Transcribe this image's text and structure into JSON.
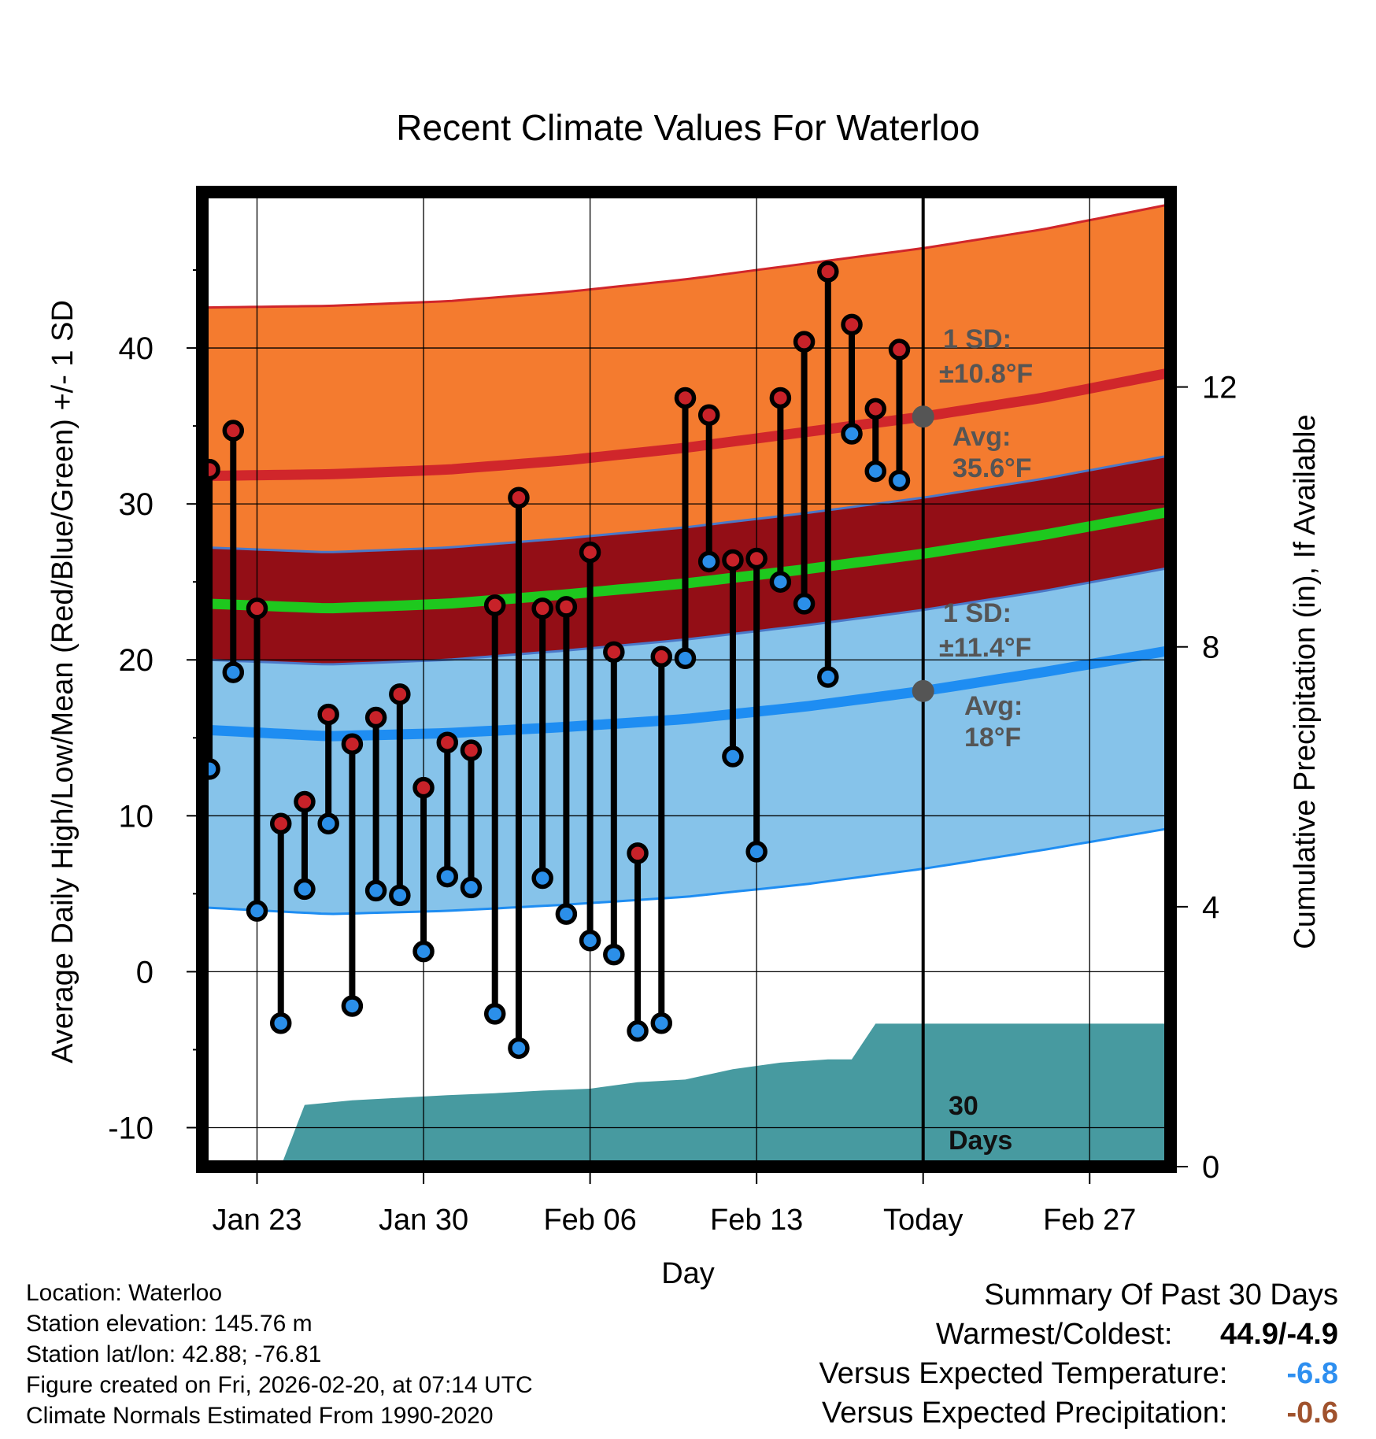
{
  "chart_data": {
    "type": "line",
    "title": "Recent Climate Values For Waterloo",
    "xlabel": "Day",
    "ylabel": "Average Daily High/Low/Mean (Red/Blue/Green) +/- 1 SD",
    "y2label": "Cumulative Precipitation (in), If Available",
    "ylim": [
      -12.5,
      50
    ],
    "y_ticks": [
      -10,
      0,
      10,
      20,
      30,
      40
    ],
    "y2lim": [
      0,
      15
    ],
    "y2_ticks": [
      0,
      4,
      8,
      12
    ],
    "xlim": [
      -0.3,
      40.4
    ],
    "x_tick_days": [
      2,
      9,
      16,
      23,
      30,
      37
    ],
    "x_tick_labels": [
      "Jan 23",
      "Jan 30",
      "Feb 06",
      "Feb 13",
      "Today",
      "Feb 27"
    ],
    "today_day": 30,
    "grid": true,
    "normal_days": [
      0,
      5,
      10,
      15,
      20,
      25,
      30,
      35,
      40
    ],
    "normal_high": [
      31.8,
      31.9,
      32.2,
      32.8,
      33.6,
      34.6,
      35.6,
      36.8,
      38.3
    ],
    "normal_low": [
      15.5,
      15.1,
      15.3,
      15.7,
      16.2,
      17.0,
      18.0,
      19.2,
      20.5
    ],
    "normal_mean": [
      23.6,
      23.3,
      23.6,
      24.2,
      24.9,
      25.8,
      26.8,
      28.0,
      29.4
    ],
    "high_sd": 10.8,
    "low_sd": 11.4,
    "mean_band": 3.6,
    "daily": [
      {
        "day": 0,
        "high": 32.2,
        "low": 13.0
      },
      {
        "day": 1,
        "high": 34.7,
        "low": 19.2
      },
      {
        "day": 2,
        "high": 23.3,
        "low": 3.9
      },
      {
        "day": 3,
        "high": 9.5,
        "low": -3.3
      },
      {
        "day": 4,
        "high": 10.9,
        "low": 5.3
      },
      {
        "day": 5,
        "high": 16.5,
        "low": 9.5
      },
      {
        "day": 6,
        "high": 14.6,
        "low": -2.2
      },
      {
        "day": 7,
        "high": 16.3,
        "low": 5.2
      },
      {
        "day": 8,
        "high": 17.8,
        "low": 4.9
      },
      {
        "day": 9,
        "high": 11.8,
        "low": 1.3
      },
      {
        "day": 10,
        "high": 14.7,
        "low": 6.1
      },
      {
        "day": 11,
        "high": 14.2,
        "low": 5.4
      },
      {
        "day": 12,
        "high": 23.5,
        "low": -2.7
      },
      {
        "day": 13,
        "high": 30.4,
        "low": -4.9
      },
      {
        "day": 14,
        "high": 23.3,
        "low": 6.0
      },
      {
        "day": 15,
        "high": 23.4,
        "low": 3.7
      },
      {
        "day": 16,
        "high": 26.9,
        "low": 2.0
      },
      {
        "day": 17,
        "high": 20.5,
        "low": 1.1
      },
      {
        "day": 18,
        "high": 7.6,
        "low": -3.8
      },
      {
        "day": 19,
        "high": 20.2,
        "low": -3.3
      },
      {
        "day": 20,
        "high": 36.8,
        "low": 20.1
      },
      {
        "day": 21,
        "high": 35.7,
        "low": 26.3
      },
      {
        "day": 22,
        "high": 26.4,
        "low": 13.8
      },
      {
        "day": 23,
        "high": 26.5,
        "low": 7.7
      },
      {
        "day": 24,
        "high": 36.8,
        "low": 25.0
      },
      {
        "day": 25,
        "high": 40.4,
        "low": 23.6
      },
      {
        "day": 26,
        "high": 44.9,
        "low": 18.9
      },
      {
        "day": 27,
        "high": 41.5,
        "low": 34.5
      },
      {
        "day": 28,
        "high": 36.1,
        "low": 32.1
      },
      {
        "day": 29,
        "high": 39.9,
        "low": 31.5
      }
    ],
    "precip_day": [
      3,
      4,
      6,
      8,
      10,
      12,
      14,
      16,
      18,
      20,
      22,
      24,
      26,
      27,
      28,
      30,
      40.4
    ],
    "precip_cum": [
      0,
      0.95,
      1.02,
      1.06,
      1.1,
      1.13,
      1.17,
      1.2,
      1.3,
      1.34,
      1.5,
      1.6,
      1.65,
      1.65,
      2.2,
      2.2,
      2.2
    ],
    "annotations": {
      "high_sd_label": "1 SD:",
      "high_sd_value": "±10.8°F",
      "high_avg_label": "Avg:",
      "high_avg_value": "35.6°F",
      "low_sd_label": "1 SD:",
      "low_sd_value": "±11.4°F",
      "low_avg_label": "Avg:",
      "low_avg_value": "18°F",
      "period_line1": "30",
      "period_line2": "Days"
    },
    "high_avg_today": 35.6,
    "low_avg_today": 18.0
  },
  "meta": {
    "location": "Location: Waterloo",
    "elevation": "Station elevation: 145.76 m",
    "latlon": "Station lat/lon: 42.88; -76.81",
    "created": "Figure created on Fri, 2026-02-20, at 07:14 UTC",
    "normals": "Climate Normals Estimated From 1990-2020"
  },
  "summary": {
    "title": "Summary Of Past 30 Days",
    "warm_cold_label": "Warmest/Coldest:",
    "warm_cold_value": "44.9/-4.9",
    "temp_label": "Versus Expected Temperature:",
    "temp_value": "-6.8",
    "precip_label": "Versus Expected Precipitation:",
    "precip_value": "-0.6"
  },
  "colors": {
    "high_band": "#f47b2f",
    "high_line": "#d0262b",
    "mean_band": "#930e16",
    "mean_line": "#1ec81e",
    "low_band": "#86c3ea",
    "low_line": "#1e8df2",
    "precip": "#479aa0",
    "high_dot": "#c82229",
    "low_dot": "#2b8fe9",
    "annotation": "#555555",
    "temp_delta": "#2e8ff0",
    "precip_delta": "#a0522d"
  }
}
